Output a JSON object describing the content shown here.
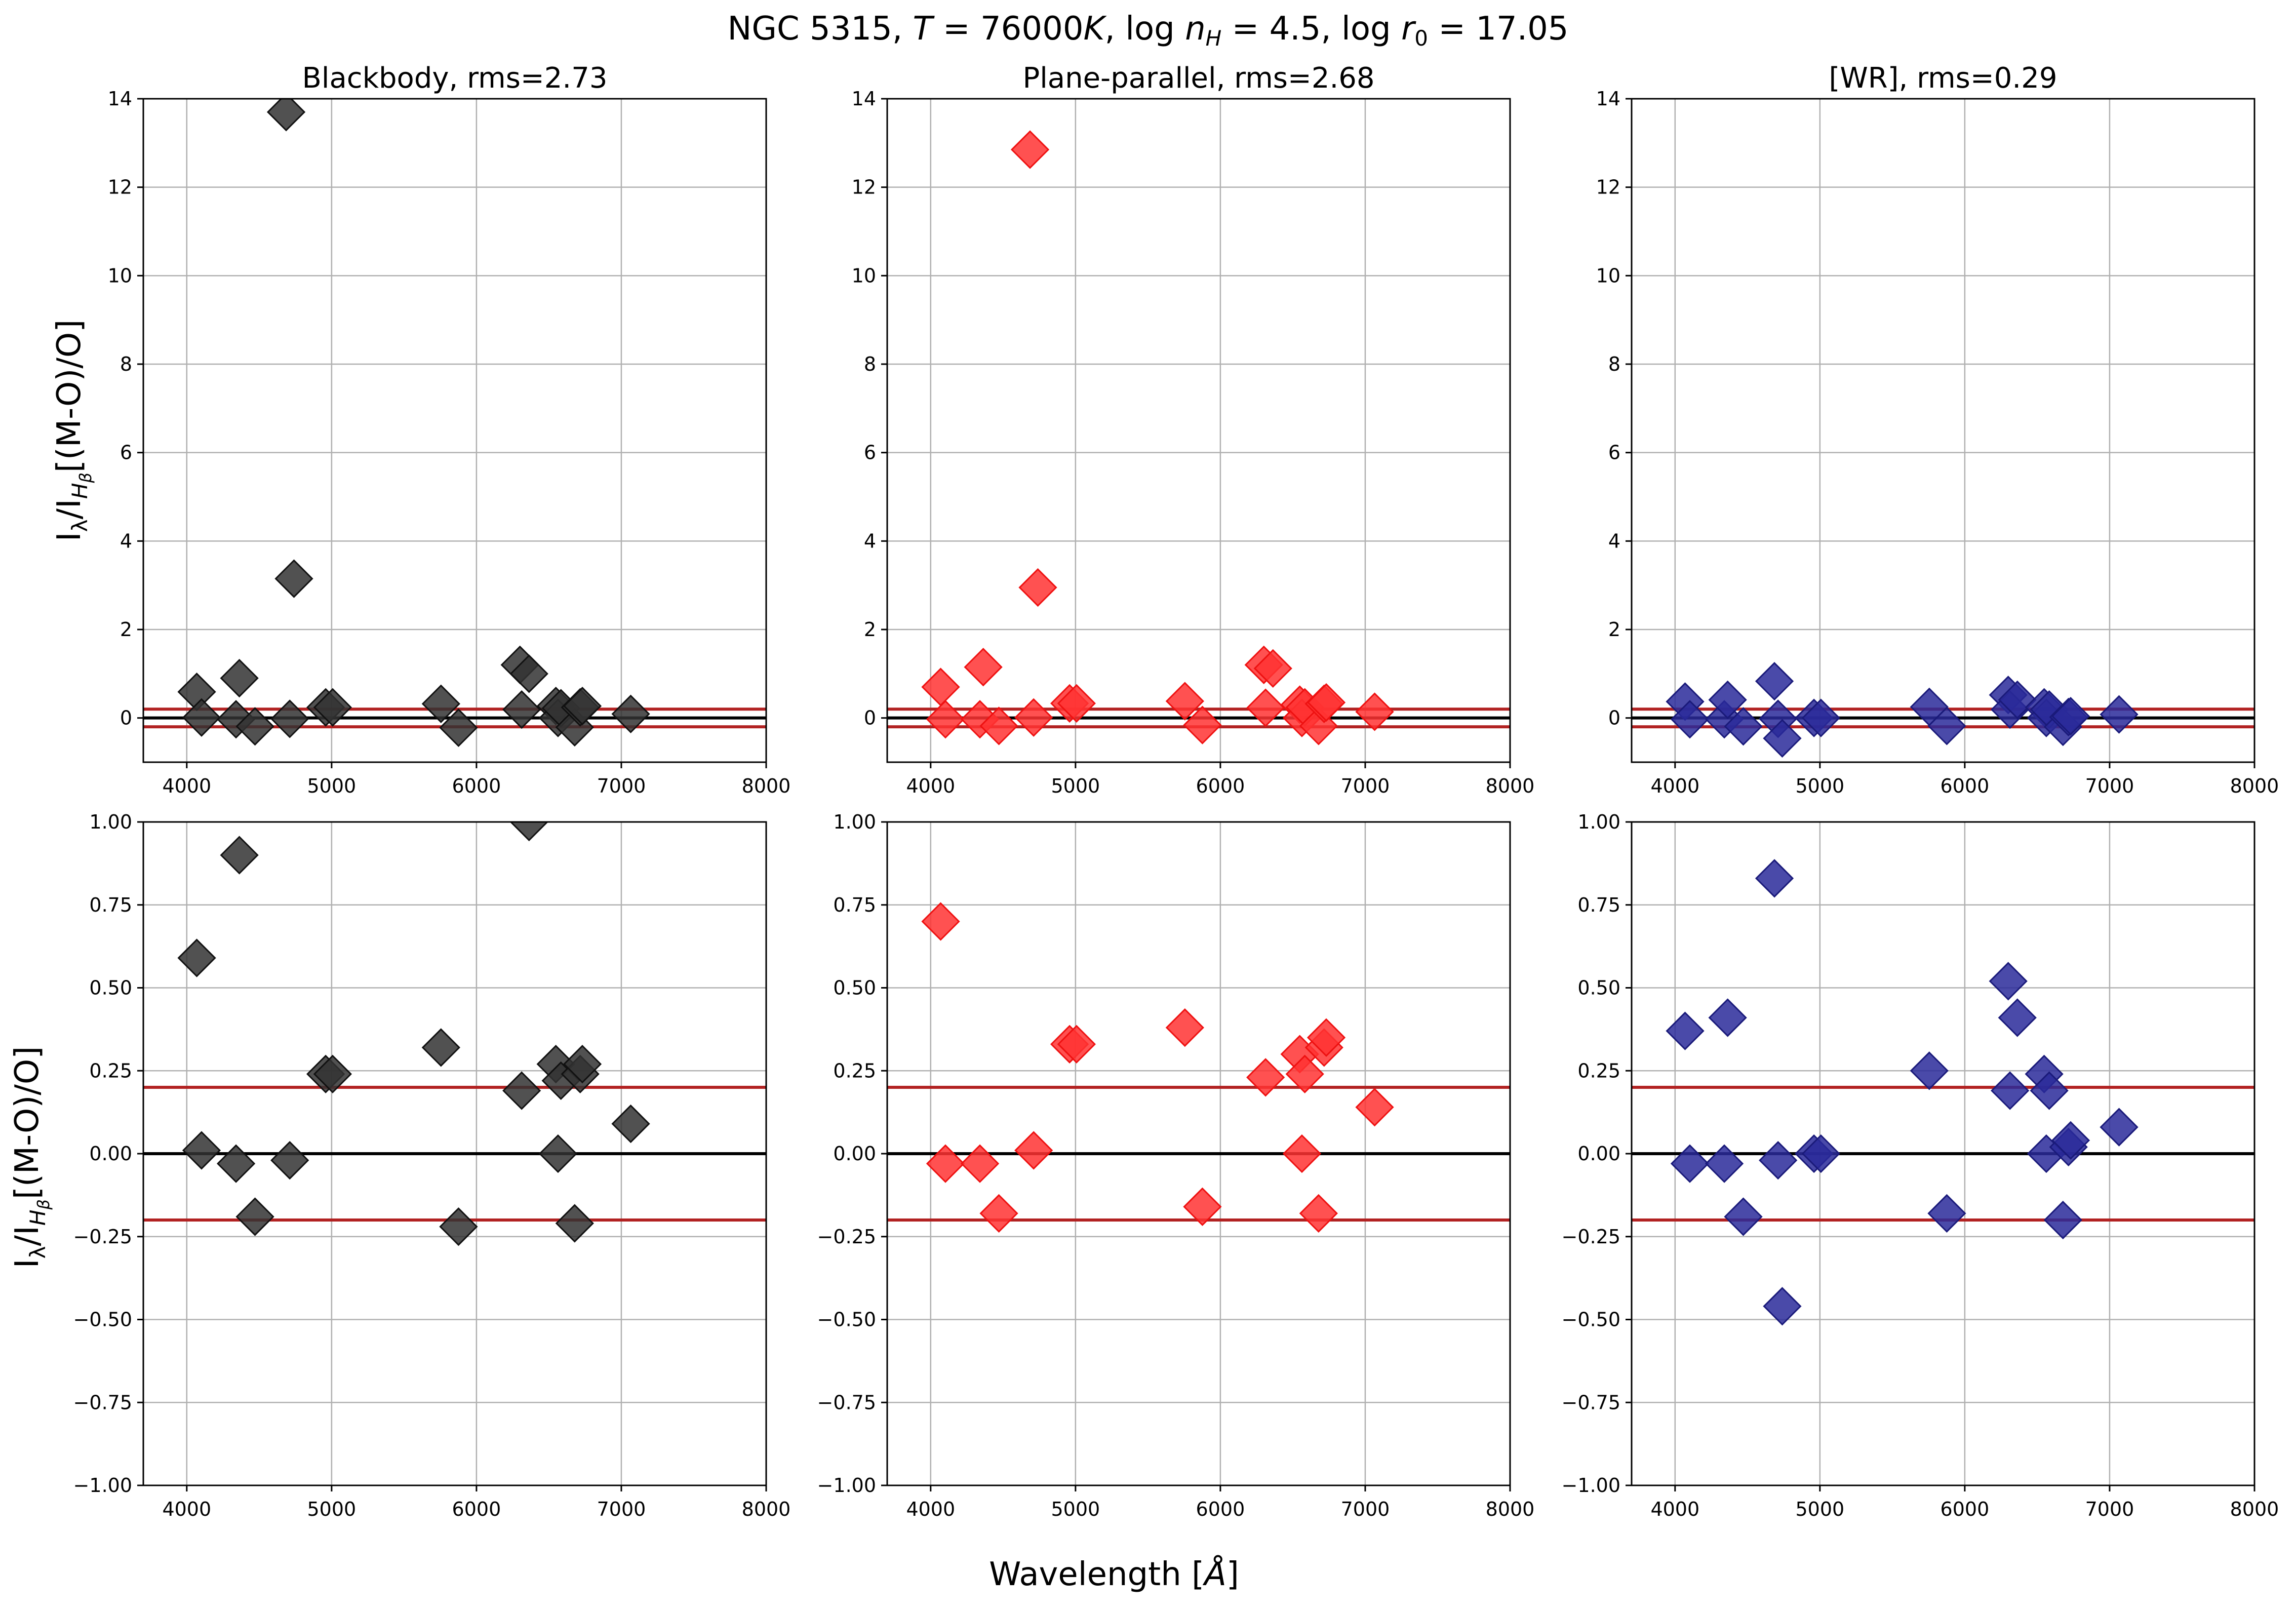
{
  "figure": {
    "suptitle": {
      "prefix": "NGC 5315, ",
      "temp_symbol": "T",
      "temp_value": " = 76000",
      "temp_unit": "K",
      "sep1": ", log ",
      "nh_symbol": "n",
      "nh_sub": "H",
      "nh_value": " = 4.5, log ",
      "r0_symbol": "r",
      "r0_sub": "0",
      "r0_value": " = 17.05"
    },
    "ylabel": {
      "i1": "I",
      "lambda": "λ",
      "slash": "/I",
      "hsub": "H",
      "beta": "β",
      "tail": "[(M-O)/O]"
    },
    "xlabel": {
      "text": "Wavelength [",
      "unit": "Å",
      "close": "]"
    }
  },
  "chart_data": [
    {
      "type": "scatter",
      "row": "top",
      "model": "Blackbody",
      "title": "Blackbody, rms=2.73",
      "color": "#333333",
      "edge_color": "#111111",
      "xlim": [
        3700,
        8000
      ],
      "ylim": [
        -1,
        14
      ],
      "xticks": [
        4000,
        5000,
        6000,
        7000,
        8000
      ],
      "yticks": [
        0,
        2,
        4,
        6,
        8,
        10,
        12,
        14
      ],
      "ytick_labels": [
        "0",
        "2",
        "4",
        "6",
        "8",
        "10",
        "12",
        "14"
      ],
      "hlines": [
        {
          "y": 0,
          "color": "#000000"
        },
        {
          "y": 0.2,
          "color": "#b22222"
        },
        {
          "y": -0.2,
          "color": "#b22222"
        }
      ],
      "points": [
        [
          4069,
          0.59
        ],
        [
          4102,
          0.01
        ],
        [
          4340,
          -0.03
        ],
        [
          4363,
          0.9
        ],
        [
          4471,
          -0.19
        ],
        [
          4686,
          13.7
        ],
        [
          4711,
          -0.02
        ],
        [
          4740,
          3.15
        ],
        [
          4959,
          0.24
        ],
        [
          5007,
          0.24
        ],
        [
          5755,
          0.32
        ],
        [
          5876,
          -0.22
        ],
        [
          6300,
          1.2
        ],
        [
          6312,
          0.19
        ],
        [
          6363,
          1.0
        ],
        [
          6548,
          0.27
        ],
        [
          6563,
          0.0
        ],
        [
          6583,
          0.22
        ],
        [
          6678,
          -0.21
        ],
        [
          6716,
          0.24
        ],
        [
          6731,
          0.27
        ],
        [
          7065,
          0.09
        ]
      ]
    },
    {
      "type": "scatter",
      "row": "top",
      "model": "Plane-parallel",
      "title": "Plane-parallel, rms=2.68",
      "color": "#ff3333",
      "edge_color": "#ee1111",
      "xlim": [
        3700,
        8000
      ],
      "ylim": [
        -1,
        14
      ],
      "xticks": [
        4000,
        5000,
        6000,
        7000,
        8000
      ],
      "yticks": [
        0,
        2,
        4,
        6,
        8,
        10,
        12,
        14
      ],
      "ytick_labels": [
        "0",
        "2",
        "4",
        "6",
        "8",
        "10",
        "12",
        "14"
      ],
      "hlines": [
        {
          "y": 0,
          "color": "#000000"
        },
        {
          "y": 0.2,
          "color": "#b22222"
        },
        {
          "y": -0.2,
          "color": "#b22222"
        }
      ],
      "points": [
        [
          4069,
          0.7
        ],
        [
          4102,
          -0.03
        ],
        [
          4340,
          -0.03
        ],
        [
          4363,
          1.15
        ],
        [
          4471,
          -0.18
        ],
        [
          4686,
          12.85
        ],
        [
          4711,
          0.01
        ],
        [
          4740,
          2.95
        ],
        [
          4959,
          0.33
        ],
        [
          5007,
          0.33
        ],
        [
          5755,
          0.38
        ],
        [
          5876,
          -0.16
        ],
        [
          6300,
          1.2
        ],
        [
          6312,
          0.23
        ],
        [
          6363,
          1.12
        ],
        [
          6548,
          0.3
        ],
        [
          6563,
          0.0
        ],
        [
          6583,
          0.24
        ],
        [
          6678,
          -0.18
        ],
        [
          6716,
          0.32
        ],
        [
          6731,
          0.35
        ],
        [
          7065,
          0.14
        ]
      ]
    },
    {
      "type": "scatter",
      "row": "top",
      "model": "[WR]",
      "title": "[WR], rms=0.29",
      "color": "#2a2a9a",
      "edge_color": "#1a1a7a",
      "xlim": [
        3700,
        8000
      ],
      "ylim": [
        -1,
        14
      ],
      "xticks": [
        4000,
        5000,
        6000,
        7000,
        8000
      ],
      "yticks": [
        0,
        2,
        4,
        6,
        8,
        10,
        12,
        14
      ],
      "ytick_labels": [
        "0",
        "2",
        "4",
        "6",
        "8",
        "10",
        "12",
        "14"
      ],
      "hlines": [
        {
          "y": 0,
          "color": "#000000"
        },
        {
          "y": 0.2,
          "color": "#b22222"
        },
        {
          "y": -0.2,
          "color": "#b22222"
        }
      ],
      "points": [
        [
          4069,
          0.37
        ],
        [
          4102,
          -0.03
        ],
        [
          4340,
          -0.03
        ],
        [
          4363,
          0.41
        ],
        [
          4471,
          -0.19
        ],
        [
          4711,
          -0.02
        ],
        [
          4686,
          0.83
        ],
        [
          4740,
          -0.46
        ],
        [
          4959,
          0.0
        ],
        [
          5007,
          0.0
        ],
        [
          5755,
          0.25
        ],
        [
          5876,
          -0.18
        ],
        [
          6300,
          0.52
        ],
        [
          6312,
          0.19
        ],
        [
          6363,
          0.41
        ],
        [
          6548,
          0.24
        ],
        [
          6563,
          0.0
        ],
        [
          6583,
          0.19
        ],
        [
          6678,
          -0.2
        ],
        [
          6716,
          0.02
        ],
        [
          6731,
          0.04
        ],
        [
          7065,
          0.08
        ]
      ]
    },
    {
      "type": "scatter",
      "row": "bottom",
      "model": "Blackbody",
      "title": "",
      "color": "#333333",
      "edge_color": "#111111",
      "xlim": [
        3700,
        8000
      ],
      "ylim": [
        -1,
        1
      ],
      "xticks": [
        4000,
        5000,
        6000,
        7000,
        8000
      ],
      "yticks": [
        1,
        0.75,
        0.5,
        0.25,
        0,
        -0.25,
        -0.5,
        -0.75,
        -1
      ],
      "ytick_labels": [
        "1.00",
        "0.75",
        "0.50",
        "0.25",
        "0.00",
        "−0.25",
        "−0.50",
        "−0.75",
        "−1.00"
      ],
      "hlines": [
        {
          "y": 0,
          "color": "#000000"
        },
        {
          "y": 0.2,
          "color": "#b22222"
        },
        {
          "y": -0.2,
          "color": "#b22222"
        }
      ],
      "points": [
        [
          4069,
          0.59
        ],
        [
          4102,
          0.01
        ],
        [
          4340,
          -0.03
        ],
        [
          4363,
          0.9
        ],
        [
          4471,
          -0.19
        ],
        [
          4711,
          -0.02
        ],
        [
          4959,
          0.24
        ],
        [
          5007,
          0.24
        ],
        [
          5755,
          0.32
        ],
        [
          5876,
          -0.22
        ],
        [
          6312,
          0.19
        ],
        [
          6363,
          1.0
        ],
        [
          6548,
          0.27
        ],
        [
          6563,
          0.0
        ],
        [
          6583,
          0.22
        ],
        [
          6678,
          -0.21
        ],
        [
          6716,
          0.24
        ],
        [
          6731,
          0.27
        ],
        [
          7065,
          0.09
        ]
      ]
    },
    {
      "type": "scatter",
      "row": "bottom",
      "model": "Plane-parallel",
      "title": "",
      "color": "#ff3333",
      "edge_color": "#ee1111",
      "xlim": [
        3700,
        8000
      ],
      "ylim": [
        -1,
        1
      ],
      "xticks": [
        4000,
        5000,
        6000,
        7000,
        8000
      ],
      "yticks": [
        1,
        0.75,
        0.5,
        0.25,
        0,
        -0.25,
        -0.5,
        -0.75,
        -1
      ],
      "ytick_labels": [
        "1.00",
        "0.75",
        "0.50",
        "0.25",
        "0.00",
        "−0.25",
        "−0.50",
        "−0.75",
        "−1.00"
      ],
      "hlines": [
        {
          "y": 0,
          "color": "#000000"
        },
        {
          "y": 0.2,
          "color": "#b22222"
        },
        {
          "y": -0.2,
          "color": "#b22222"
        }
      ],
      "points": [
        [
          4069,
          0.7
        ],
        [
          4102,
          -0.03
        ],
        [
          4340,
          -0.03
        ],
        [
          4471,
          -0.18
        ],
        [
          4711,
          0.01
        ],
        [
          4959,
          0.33
        ],
        [
          5007,
          0.33
        ],
        [
          5755,
          0.38
        ],
        [
          5876,
          -0.16
        ],
        [
          6312,
          0.23
        ],
        [
          6548,
          0.3
        ],
        [
          6563,
          0.0
        ],
        [
          6583,
          0.24
        ],
        [
          6678,
          -0.18
        ],
        [
          6716,
          0.32
        ],
        [
          6731,
          0.35
        ],
        [
          7065,
          0.14
        ]
      ]
    },
    {
      "type": "scatter",
      "row": "bottom",
      "model": "[WR]",
      "title": "",
      "color": "#2a2a9a",
      "edge_color": "#1a1a7a",
      "xlim": [
        3700,
        8000
      ],
      "ylim": [
        -1,
        1
      ],
      "xticks": [
        4000,
        5000,
        6000,
        7000,
        8000
      ],
      "yticks": [
        1,
        0.75,
        0.5,
        0.25,
        0,
        -0.25,
        -0.5,
        -0.75,
        -1
      ],
      "ytick_labels": [
        "1.00",
        "0.75",
        "0.50",
        "0.25",
        "0.00",
        "−0.25",
        "−0.50",
        "−0.75",
        "−1.00"
      ],
      "hlines": [
        {
          "y": 0,
          "color": "#000000"
        },
        {
          "y": 0.2,
          "color": "#b22222"
        },
        {
          "y": -0.2,
          "color": "#b22222"
        }
      ],
      "points": [
        [
          4069,
          0.37
        ],
        [
          4102,
          -0.03
        ],
        [
          4340,
          -0.03
        ],
        [
          4363,
          0.41
        ],
        [
          4471,
          -0.19
        ],
        [
          4686,
          0.83
        ],
        [
          4711,
          -0.02
        ],
        [
          4740,
          -0.46
        ],
        [
          4959,
          0.0
        ],
        [
          5007,
          0.0
        ],
        [
          5755,
          0.25
        ],
        [
          5876,
          -0.18
        ],
        [
          6300,
          0.52
        ],
        [
          6312,
          0.19
        ],
        [
          6363,
          0.41
        ],
        [
          6548,
          0.24
        ],
        [
          6563,
          0.0
        ],
        [
          6583,
          0.19
        ],
        [
          6678,
          -0.2
        ],
        [
          6716,
          0.02
        ],
        [
          6731,
          0.04
        ],
        [
          7065,
          0.08
        ]
      ]
    }
  ]
}
